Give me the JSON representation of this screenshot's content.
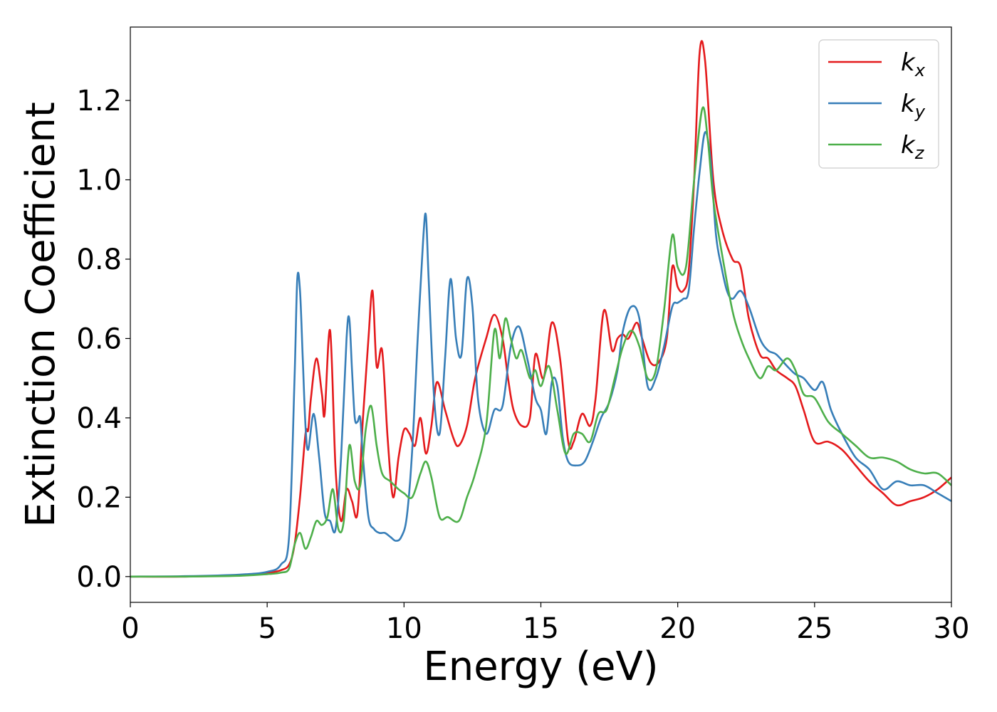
{
  "chart_data": {
    "type": "line",
    "xlabel": "Energy (eV)",
    "ylabel": "Extinction Coefficient",
    "xlim": [
      0,
      30
    ],
    "ylim": [
      -0.065,
      1.385
    ],
    "xticks": [
      0,
      5,
      10,
      15,
      20,
      25,
      30
    ],
    "xtick_labels": [
      "0",
      "5",
      "10",
      "15",
      "20",
      "25",
      "30"
    ],
    "yticks": [
      0.0,
      0.2,
      0.4,
      0.6,
      0.8,
      1.0,
      1.2
    ],
    "ytick_labels": [
      "0.0",
      "0.2",
      "0.4",
      "0.6",
      "0.8",
      "1.0",
      "1.2"
    ],
    "grid": false,
    "legend_position": "top-right",
    "series": [
      {
        "name": "k_x",
        "label_base": "k",
        "label_sub": "x",
        "color": "#e41a1c",
        "x": [
          0,
          2,
          4,
          5,
          5.5,
          5.8,
          6.0,
          6.2,
          6.4,
          6.5,
          6.6,
          6.8,
          7.0,
          7.1,
          7.3,
          7.5,
          7.7,
          7.9,
          8.1,
          8.3,
          8.5,
          8.7,
          8.85,
          9.0,
          9.2,
          9.4,
          9.6,
          9.8,
          10.0,
          10.2,
          10.4,
          10.6,
          10.8,
          11.0,
          11.2,
          11.5,
          11.8,
          12.0,
          12.3,
          12.6,
          13.0,
          13.3,
          13.6,
          13.8,
          14.0,
          14.3,
          14.6,
          14.8,
          15.1,
          15.4,
          15.7,
          16.0,
          16.2,
          16.5,
          16.8,
          17.0,
          17.3,
          17.6,
          17.8,
          18.0,
          18.2,
          18.5,
          18.7,
          19.0,
          19.3,
          19.6,
          19.8,
          20.0,
          20.2,
          20.4,
          20.6,
          20.8,
          21.0,
          21.3,
          21.6,
          22.0,
          22.3,
          22.6,
          23.0,
          23.3,
          23.6,
          24.0,
          24.3,
          24.6,
          25.0,
          25.5,
          26.0,
          26.5,
          27.0,
          27.5,
          28.0,
          28.5,
          29.0,
          29.5,
          30.0
        ],
        "y": [
          0.0,
          0.0,
          0.004,
          0.009,
          0.016,
          0.03,
          0.08,
          0.2,
          0.36,
          0.37,
          0.45,
          0.55,
          0.46,
          0.41,
          0.62,
          0.27,
          0.14,
          0.22,
          0.19,
          0.16,
          0.4,
          0.6,
          0.72,
          0.53,
          0.57,
          0.35,
          0.2,
          0.3,
          0.37,
          0.36,
          0.33,
          0.4,
          0.31,
          0.38,
          0.49,
          0.42,
          0.35,
          0.33,
          0.38,
          0.5,
          0.6,
          0.66,
          0.6,
          0.5,
          0.42,
          0.38,
          0.4,
          0.56,
          0.5,
          0.64,
          0.55,
          0.34,
          0.34,
          0.41,
          0.38,
          0.45,
          0.67,
          0.57,
          0.6,
          0.61,
          0.6,
          0.64,
          0.6,
          0.54,
          0.54,
          0.6,
          0.78,
          0.73,
          0.72,
          0.77,
          1.0,
          1.32,
          1.3,
          1.0,
          0.88,
          0.8,
          0.78,
          0.65,
          0.56,
          0.55,
          0.52,
          0.5,
          0.48,
          0.42,
          0.34,
          0.34,
          0.32,
          0.28,
          0.24,
          0.21,
          0.18,
          0.19,
          0.2,
          0.22,
          0.25
        ]
      },
      {
        "name": "k_y",
        "label_base": "k",
        "label_sub": "y",
        "color": "#377eb8",
        "x": [
          0,
          2,
          4,
          5,
          5.5,
          5.8,
          6.0,
          6.1,
          6.2,
          6.3,
          6.4,
          6.5,
          6.7,
          6.9,
          7.1,
          7.3,
          7.5,
          7.7,
          7.9,
          8.0,
          8.1,
          8.2,
          8.3,
          8.4,
          8.5,
          8.7,
          8.9,
          9.1,
          9.3,
          9.5,
          9.7,
          9.9,
          10.1,
          10.3,
          10.5,
          10.7,
          10.8,
          10.9,
          11.1,
          11.3,
          11.5,
          11.7,
          11.9,
          12.1,
          12.3,
          12.5,
          12.7,
          13.0,
          13.3,
          13.6,
          13.9,
          14.2,
          14.5,
          14.8,
          15.0,
          15.2,
          15.4,
          15.6,
          15.8,
          16.0,
          16.3,
          16.6,
          16.9,
          17.2,
          17.5,
          17.8,
          18.0,
          18.3,
          18.6,
          18.9,
          19.2,
          19.5,
          19.8,
          20.0,
          20.2,
          20.4,
          20.6,
          20.8,
          21.0,
          21.2,
          21.4,
          21.6,
          21.8,
          22.0,
          22.3,
          22.6,
          23.0,
          23.3,
          23.6,
          24.0,
          24.3,
          24.6,
          25.0,
          25.3,
          25.6,
          26.0,
          26.5,
          27.0,
          27.5,
          28.0,
          28.5,
          29.0,
          29.5,
          30.0
        ],
        "y": [
          0.0,
          0.001,
          0.005,
          0.012,
          0.03,
          0.1,
          0.5,
          0.75,
          0.72,
          0.55,
          0.38,
          0.32,
          0.41,
          0.3,
          0.16,
          0.14,
          0.12,
          0.3,
          0.6,
          0.65,
          0.52,
          0.4,
          0.39,
          0.4,
          0.3,
          0.15,
          0.12,
          0.11,
          0.11,
          0.1,
          0.09,
          0.1,
          0.15,
          0.32,
          0.6,
          0.85,
          0.91,
          0.75,
          0.45,
          0.36,
          0.55,
          0.75,
          0.6,
          0.56,
          0.75,
          0.68,
          0.45,
          0.36,
          0.42,
          0.43,
          0.58,
          0.63,
          0.55,
          0.45,
          0.42,
          0.36,
          0.49,
          0.48,
          0.35,
          0.29,
          0.28,
          0.29,
          0.34,
          0.4,
          0.44,
          0.52,
          0.62,
          0.68,
          0.65,
          0.48,
          0.5,
          0.58,
          0.68,
          0.69,
          0.7,
          0.72,
          0.88,
          1.02,
          1.12,
          1.05,
          0.86,
          0.78,
          0.72,
          0.7,
          0.72,
          0.68,
          0.6,
          0.57,
          0.56,
          0.53,
          0.51,
          0.5,
          0.47,
          0.49,
          0.42,
          0.36,
          0.3,
          0.27,
          0.22,
          0.24,
          0.23,
          0.23,
          0.21,
          0.19
        ]
      },
      {
        "name": "k_z",
        "label_base": "k",
        "label_sub": "z",
        "color": "#4daf4a",
        "x": [
          0,
          2,
          4,
          5,
          5.5,
          5.8,
          6.0,
          6.2,
          6.4,
          6.6,
          6.8,
          7.0,
          7.2,
          7.4,
          7.6,
          7.8,
          8.0,
          8.2,
          8.4,
          8.6,
          8.8,
          9.0,
          9.2,
          9.5,
          9.8,
          10.0,
          10.3,
          10.6,
          10.8,
          11.0,
          11.3,
          11.6,
          12.0,
          12.3,
          12.6,
          13.0,
          13.3,
          13.5,
          13.7,
          13.9,
          14.1,
          14.3,
          14.6,
          14.8,
          15.0,
          15.3,
          15.6,
          15.9,
          16.2,
          16.5,
          16.8,
          17.1,
          17.4,
          17.7,
          18.0,
          18.3,
          18.6,
          18.9,
          19.2,
          19.5,
          19.8,
          20.0,
          20.3,
          20.6,
          20.9,
          21.1,
          21.3,
          21.6,
          22.0,
          22.3,
          22.6,
          23.0,
          23.3,
          23.6,
          24.0,
          24.3,
          24.6,
          25.0,
          25.5,
          26.0,
          26.5,
          27.0,
          27.5,
          28.0,
          28.5,
          29.0,
          29.5,
          30.0
        ],
        "y": [
          0.0,
          0.0,
          0.002,
          0.006,
          0.01,
          0.02,
          0.08,
          0.11,
          0.07,
          0.1,
          0.14,
          0.13,
          0.15,
          0.22,
          0.12,
          0.14,
          0.33,
          0.24,
          0.23,
          0.37,
          0.43,
          0.33,
          0.26,
          0.24,
          0.22,
          0.21,
          0.2,
          0.26,
          0.29,
          0.25,
          0.15,
          0.15,
          0.14,
          0.2,
          0.26,
          0.38,
          0.62,
          0.55,
          0.65,
          0.6,
          0.55,
          0.57,
          0.5,
          0.52,
          0.48,
          0.53,
          0.42,
          0.31,
          0.36,
          0.36,
          0.34,
          0.41,
          0.42,
          0.5,
          0.58,
          0.62,
          0.58,
          0.5,
          0.52,
          0.67,
          0.86,
          0.78,
          0.78,
          1.0,
          1.18,
          1.1,
          0.95,
          0.82,
          0.67,
          0.6,
          0.55,
          0.5,
          0.53,
          0.52,
          0.55,
          0.52,
          0.46,
          0.45,
          0.39,
          0.36,
          0.33,
          0.3,
          0.3,
          0.29,
          0.27,
          0.26,
          0.26,
          0.23
        ]
      }
    ]
  }
}
